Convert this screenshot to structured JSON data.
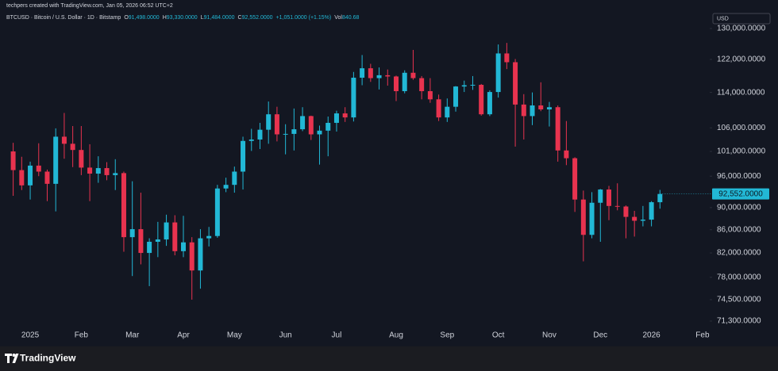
{
  "header": {
    "credit": "techpers created with TradingView.com, Jan 05, 2026 06:52 UTC+2",
    "symbol": "BTCUSD · Bitcoin / U.S. Dollar · 1D · Bitstamp",
    "stats": [
      {
        "label": "O",
        "value": "91,498.0000"
      },
      {
        "label": "H",
        "value": "93,330.0000"
      },
      {
        "label": "L",
        "value": "91,484.0000"
      },
      {
        "label": "C",
        "value": "92,552.0000"
      }
    ],
    "change": "+1,051.0000 (+1.15%)",
    "volume": {
      "label": "Vol",
      "value": "840.68"
    },
    "currency": "USD"
  },
  "footer": {
    "brand": "TradingView"
  },
  "chart_data": {
    "type": "candlestick",
    "log_scale": true,
    "grid": false,
    "up_color": "#22b8d6",
    "down_color": "#e8334f",
    "categories": [
      null,
      null,
      "2025",
      null,
      null,
      null,
      null,
      null,
      "Feb",
      null,
      null,
      null,
      null,
      null,
      "Mar",
      null,
      null,
      null,
      null,
      null,
      "Apr",
      null,
      null,
      null,
      null,
      null,
      "May",
      null,
      null,
      null,
      null,
      null,
      "Jun",
      null,
      null,
      null,
      null,
      null,
      "Jul",
      null,
      null,
      null,
      null,
      null,
      null,
      "Aug",
      null,
      null,
      null,
      null,
      null,
      "Sep",
      null,
      null,
      null,
      null,
      null,
      "Oct",
      null,
      null,
      null,
      null,
      null,
      "Nov",
      null,
      null,
      null,
      null,
      null,
      "Dec",
      null,
      null,
      null,
      null,
      null,
      "2026",
      null,
      null,
      null,
      null,
      null,
      "Feb"
    ],
    "open": [
      101000,
      97200,
      94200,
      98100,
      96900,
      94500,
      104100,
      102600,
      101300,
      97700,
      96500,
      97600,
      96200,
      96600,
      84700,
      86100,
      82000,
      83900,
      84300,
      87300,
      82300,
      83800,
      79100,
      84500,
      84900,
      93600,
      94300,
      96900,
      103200,
      103500,
      105600,
      109000,
      104600,
      104700,
      105700,
      108600,
      104600,
      105400,
      107100,
      109200,
      108300,
      117500,
      119800,
      117400,
      118100,
      117800,
      114300,
      118700,
      117400,
      114300,
      112400,
      108300,
      110700,
      115400,
      115700,
      115800,
      109000,
      114100,
      123500,
      121300,
      111200,
      108600,
      111000,
      110100,
      110600,
      101200,
      99600,
      91500,
      85100,
      90900,
      93400,
      90300,
      90200,
      88300,
      87600,
      87800,
      91000,
      null,
      null,
      null,
      null,
      null
    ],
    "high": [
      102800,
      99900,
      98900,
      102700,
      97300,
      105900,
      109300,
      106400,
      106400,
      102500,
      100000,
      98800,
      99400,
      96900,
      95000,
      92800,
      84500,
      87400,
      88700,
      88600,
      88500,
      84700,
      86100,
      86500,
      94300,
      95700,
      97900,
      104100,
      105800,
      107100,
      111900,
      110700,
      106800,
      110300,
      110600,
      108700,
      106500,
      108500,
      109800,
      110600,
      118900,
      123100,
      120900,
      120000,
      119500,
      118000,
      119300,
      124400,
      117900,
      117400,
      113500,
      112600,
      115500,
      116800,
      117900,
      116000,
      114500,
      125800,
      126200,
      122100,
      113600,
      114000,
      116400,
      111800,
      111000,
      107500,
      99800,
      93200,
      92900,
      93500,
      94100,
      94600,
      90400,
      89400,
      90300,
      91200,
      93330,
      null,
      null,
      null,
      null,
      null
    ],
    "low": [
      92200,
      93300,
      91500,
      96000,
      91200,
      89300,
      99500,
      97800,
      96200,
      91200,
      94700,
      95200,
      93300,
      82200,
      78200,
      80100,
      76600,
      81300,
      83200,
      81600,
      81300,
      74500,
      76200,
      83100,
      84600,
      92900,
      92800,
      93400,
      101100,
      101500,
      102600,
      103100,
      100400,
      101200,
      105300,
      103400,
      98300,
      100000,
      105200,
      107300,
      107400,
      115700,
      116500,
      114700,
      115600,
      112000,
      113800,
      117000,
      112400,
      111600,
      107500,
      107300,
      109600,
      114100,
      114600,
      108700,
      108600,
      112800,
      119600,
      102000,
      103500,
      106600,
      109700,
      106300,
      98900,
      98200,
      89200,
      80600,
      84500,
      83900,
      87700,
      89500,
      84500,
      84800,
      86600,
      86600,
      89800,
      null,
      null,
      null,
      null,
      null
    ],
    "close": [
      97200,
      94200,
      98100,
      96900,
      94500,
      104100,
      102600,
      101300,
      97700,
      96500,
      97600,
      96200,
      96600,
      84700,
      86100,
      82000,
      83900,
      84300,
      87300,
      82300,
      83800,
      79100,
      84500,
      84900,
      93600,
      94300,
      96900,
      103200,
      103500,
      105600,
      109000,
      104600,
      104700,
      105700,
      108600,
      104600,
      105400,
      107100,
      109200,
      108300,
      117500,
      119800,
      117400,
      118100,
      117800,
      114300,
      118700,
      117400,
      114300,
      112400,
      108300,
      110700,
      115400,
      115700,
      115800,
      109000,
      114100,
      123500,
      121300,
      111200,
      108600,
      111000,
      110100,
      110600,
      101200,
      99600,
      91500,
      85100,
      90900,
      93400,
      90300,
      90200,
      88300,
      87600,
      87800,
      91000,
      92552,
      null,
      null,
      null,
      null,
      null
    ],
    "last_price_label": "92,552.0000",
    "ylim": [
      67900,
      134500
    ],
    "yticks": [
      {
        "value": 130000,
        "label": "130,000.0000"
      },
      {
        "value": 122000,
        "label": "122,000.0000"
      },
      {
        "value": 114000,
        "label": "114,000.0000"
      },
      {
        "value": 106000,
        "label": "106,000.0000"
      },
      {
        "value": 101000,
        "label": "101,000.0000"
      },
      {
        "value": 96000,
        "label": "96,000.0000"
      },
      {
        "value": 90000,
        "label": "90,000.0000"
      },
      {
        "value": 86000,
        "label": "86,000.0000"
      },
      {
        "value": 82000,
        "label": "82,000.0000"
      },
      {
        "value": 78000,
        "label": "78,000.0000"
      },
      {
        "value": 74500,
        "label": "74,500.0000"
      },
      {
        "value": 71300,
        "label": "71,300.0000"
      }
    ]
  }
}
